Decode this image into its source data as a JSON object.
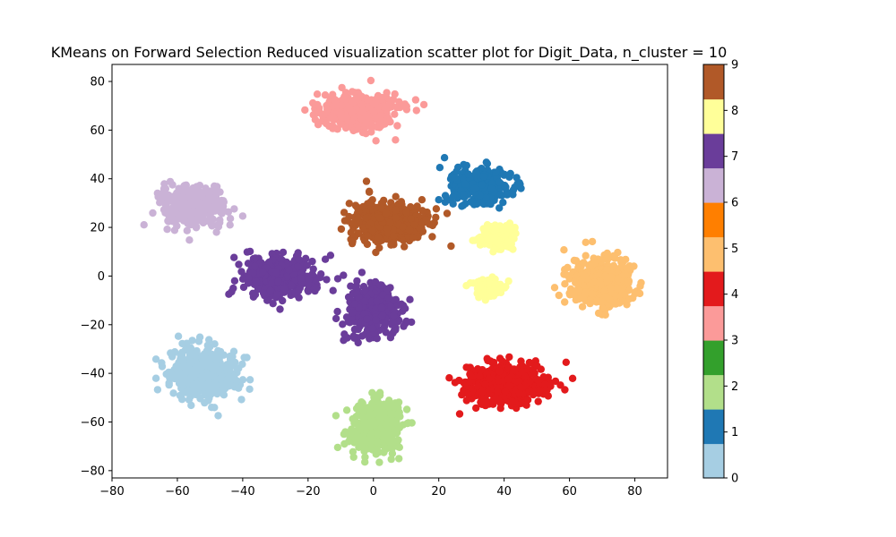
{
  "chart_data": {
    "type": "scatter",
    "title": "KMeans on Forward Selection Reduced visualization scatter plot for Digit_Data, n_cluster = 10",
    "xlabel": "",
    "ylabel": "",
    "xlim": [
      -80,
      90
    ],
    "ylim": [
      -83,
      87
    ],
    "xticks": [
      -80,
      -60,
      -40,
      -20,
      0,
      20,
      40,
      60,
      80
    ],
    "yticks": [
      -80,
      -60,
      -40,
      -20,
      0,
      20,
      40,
      60,
      80
    ],
    "grid": false,
    "colormap": "Paired",
    "colorbar": {
      "range": [
        0,
        9
      ],
      "ticks": [
        0,
        1,
        2,
        3,
        4,
        5,
        6,
        7,
        8,
        9
      ],
      "colors": [
        "#a6cee3",
        "#1f78b4",
        "#b2df8a",
        "#33a02c",
        "#fb9a99",
        "#e31a1c",
        "#fdbf6f",
        "#ff7f00",
        "#cab2d6",
        "#6a3d9a",
        "#ffff99",
        "#b15928"
      ]
    },
    "clusters": [
      {
        "label": 0,
        "color": "#a6cee3",
        "center": [
          -52,
          -40
        ],
        "spread": [
          8,
          8
        ],
        "points": 500
      },
      {
        "label": 1,
        "color": "#1f78b4",
        "center": [
          33,
          37
        ],
        "spread": [
          8,
          6
        ],
        "points": 350
      },
      {
        "label": 2,
        "color": "#b2df8a",
        "center": [
          1,
          -62
        ],
        "spread": [
          6,
          9
        ],
        "points": 400
      },
      {
        "label": 3,
        "color": "#fb9a99",
        "center": [
          -5,
          68
        ],
        "spread": [
          10,
          6
        ],
        "points": 400
      },
      {
        "label": 4,
        "color": "#e31a1c",
        "center": [
          40,
          -44
        ],
        "spread": [
          10,
          7
        ],
        "points": 500
      },
      {
        "label": 5,
        "color": "#fdbf6f",
        "center": [
          70,
          -2
        ],
        "spread": [
          8,
          8
        ],
        "points": 450
      },
      {
        "label": 6,
        "color": "#cab2d6",
        "center": [
          -55,
          29
        ],
        "spread": [
          8,
          7
        ],
        "points": 400
      },
      {
        "label": 7,
        "color": "#6a3d9a",
        "center": [
          -29,
          0
        ],
        "spread": [
          9,
          7
        ],
        "points": 450
      },
      {
        "label": 7,
        "color": "#6a3d9a",
        "center": [
          0,
          -14
        ],
        "spread": [
          7,
          8
        ],
        "points": 350
      },
      {
        "label": 8,
        "color": "#ffff99",
        "center": [
          38,
          16
        ],
        "spread": [
          4,
          4
        ],
        "points": 150
      },
      {
        "label": 8,
        "color": "#ffff99",
        "center": [
          35,
          -5
        ],
        "spread": [
          4,
          3
        ],
        "points": 100
      },
      {
        "label": 9,
        "color": "#b15928",
        "center": [
          5,
          22
        ],
        "spread": [
          10,
          7
        ],
        "points": 450
      }
    ]
  }
}
